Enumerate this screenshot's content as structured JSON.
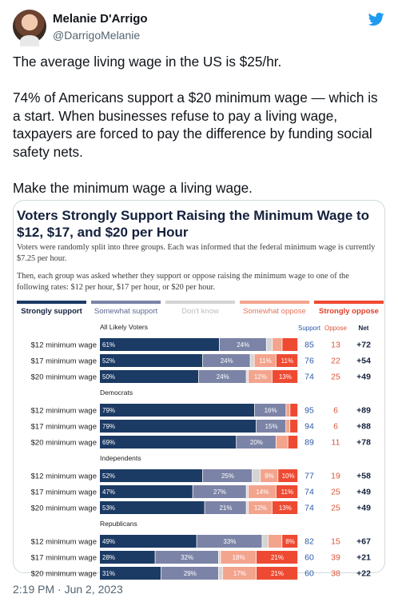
{
  "author": {
    "name": "Melanie D'Arrigo",
    "handle": "@DarrigoMelanie"
  },
  "brand_icon": "twitter-bird-icon",
  "tweet": {
    "paragraphs": [
      "The average living wage in the US is $25/hr.",
      "74% of Americans support a $20 minimum wage — which is a start. When businesses refuse to pay a living wage, taxpayers are forced to pay the difference by funding social safety nets.",
      "Make the minimum wage a living wage."
    ],
    "timestamp": "2:19 PM · Jun 2, 2023"
  },
  "colors": {
    "strongly_support": "#1b3a64",
    "somewhat_support": "#7b83a6",
    "dont_know": "#d4d4d4",
    "somewhat_oppose": "#f3a48d",
    "strongly_oppose": "#ee4a32",
    "support_text": "#2e5aa8",
    "oppose_text": "#e0533a"
  },
  "chart_data": {
    "type": "bar",
    "stacked": true,
    "orientation": "horizontal",
    "title": "Voters Strongly Support Raising the Minimum Wage to $12, $17, and $20 per Hour",
    "desc1": "Voters were randomly split into three groups. Each was informed that the federal minimum wage is currently $7.25 per hour.",
    "desc2": "Then, each group was asked whether they support or oppose raising the minimum wage to one of the following rates: $12 per hour, $17 per hour, or $20 per hour.",
    "legend": [
      "Strongly support",
      "Somewhat support",
      "Don't know",
      "Somewhat oppose",
      "Strongly oppose"
    ],
    "column_headers": [
      "Support",
      "Oppose",
      "Net"
    ],
    "groups": [
      {
        "name": "All Likely Voters",
        "rows": [
          {
            "label": "$12 minimum wage",
            "segments": [
              61,
              24,
              3,
              5,
              8
            ],
            "labels": [
              "61%",
              "24%",
              "",
              "",
              ""
            ],
            "support": "85",
            "oppose": "13",
            "net": "+72"
          },
          {
            "label": "$17 minimum wage",
            "segments": [
              52,
              24,
              2,
              11,
              11
            ],
            "labels": [
              "52%",
              "24%",
              "",
              "11%",
              "11%"
            ],
            "support": "76",
            "oppose": "22",
            "net": "+54"
          },
          {
            "label": "$20 minimum wage",
            "segments": [
              50,
              24,
              1,
              12,
              13
            ],
            "labels": [
              "50%",
              "24%",
              "",
              "12%",
              "13%"
            ],
            "support": "74",
            "oppose": "25",
            "net": "+49"
          }
        ]
      },
      {
        "name": "Democrats",
        "rows": [
          {
            "label": "$12 minimum wage",
            "segments": [
              79,
              16,
              0,
              2,
              4
            ],
            "labels": [
              "79%",
              "16%",
              "",
              "",
              ""
            ],
            "support": "95",
            "oppose": "6",
            "net": "+89"
          },
          {
            "label": "$17 minimum wage",
            "segments": [
              79,
              15,
              0,
              2,
              4
            ],
            "labels": [
              "79%",
              "15%",
              "",
              "",
              ""
            ],
            "support": "94",
            "oppose": "6",
            "net": "+88"
          },
          {
            "label": "$20 minimum wage",
            "segments": [
              69,
              20,
              0,
              6,
              5
            ],
            "labels": [
              "69%",
              "20%",
              "",
              "",
              ""
            ],
            "support": "89",
            "oppose": "11",
            "net": "+78"
          }
        ]
      },
      {
        "name": "Independents",
        "rows": [
          {
            "label": "$12 minimum wage",
            "segments": [
              52,
              25,
              4,
              9,
              10
            ],
            "labels": [
              "52%",
              "25%",
              "",
              "9%",
              "10%"
            ],
            "support": "77",
            "oppose": "19",
            "net": "+58"
          },
          {
            "label": "$17 minimum wage",
            "segments": [
              47,
              27,
              1,
              14,
              11
            ],
            "labels": [
              "47%",
              "27%",
              "",
              "14%",
              "11%"
            ],
            "support": "74",
            "oppose": "25",
            "net": "+49"
          },
          {
            "label": "$20 minimum wage",
            "segments": [
              53,
              21,
              1,
              12,
              13
            ],
            "labels": [
              "53%",
              "21%",
              "",
              "12%",
              "13%"
            ],
            "support": "74",
            "oppose": "25",
            "net": "+49"
          }
        ]
      },
      {
        "name": "Republicans",
        "rows": [
          {
            "label": "$12 minimum wage",
            "segments": [
              49,
              33,
              3,
              7,
              8
            ],
            "labels": [
              "49%",
              "33%",
              "",
              "",
              "8%"
            ],
            "support": "82",
            "oppose": "15",
            "net": "+67"
          },
          {
            "label": "$17 minimum wage",
            "segments": [
              28,
              32,
              1,
              18,
              21
            ],
            "labels": [
              "28%",
              "32%",
              "",
              "18%",
              "21%"
            ],
            "support": "60",
            "oppose": "39",
            "net": "+21"
          },
          {
            "label": "$20 minimum wage",
            "segments": [
              31,
              29,
              2,
              17,
              21
            ],
            "labels": [
              "31%",
              "29%",
              "",
              "17%",
              "21%"
            ],
            "support": "60",
            "oppose": "38",
            "net": "+22"
          }
        ]
      }
    ]
  }
}
